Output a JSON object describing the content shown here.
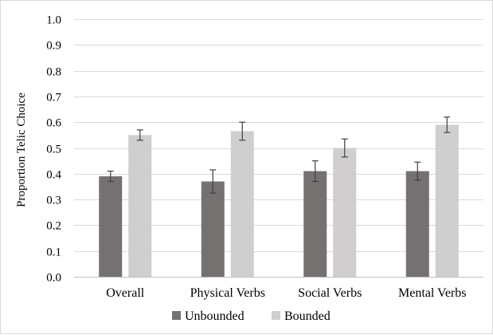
{
  "chart_data": {
    "type": "bar",
    "title": "",
    "xlabel": "",
    "ylabel": "Proportion Telic Choice",
    "ylim": [
      0,
      1.0
    ],
    "yticks": [
      "0.0",
      "0.1",
      "0.2",
      "0.3",
      "0.4",
      "0.5",
      "0.6",
      "0.7",
      "0.8",
      "0.9",
      "1.0"
    ],
    "categories": [
      "Overall",
      "Physical Verbs",
      "Social Verbs",
      "Mental Verbs"
    ],
    "series": [
      {
        "name": "Unbounded",
        "color": "#767171",
        "values": [
          0.39,
          0.37,
          0.41,
          0.41
        ],
        "errors": [
          0.02,
          0.045,
          0.04,
          0.035
        ]
      },
      {
        "name": "Bounded",
        "color": "#d0cece",
        "values": [
          0.55,
          0.565,
          0.5,
          0.59
        ],
        "errors": [
          0.02,
          0.035,
          0.035,
          0.03
        ]
      }
    ],
    "grid": true,
    "legend": "bottom"
  }
}
